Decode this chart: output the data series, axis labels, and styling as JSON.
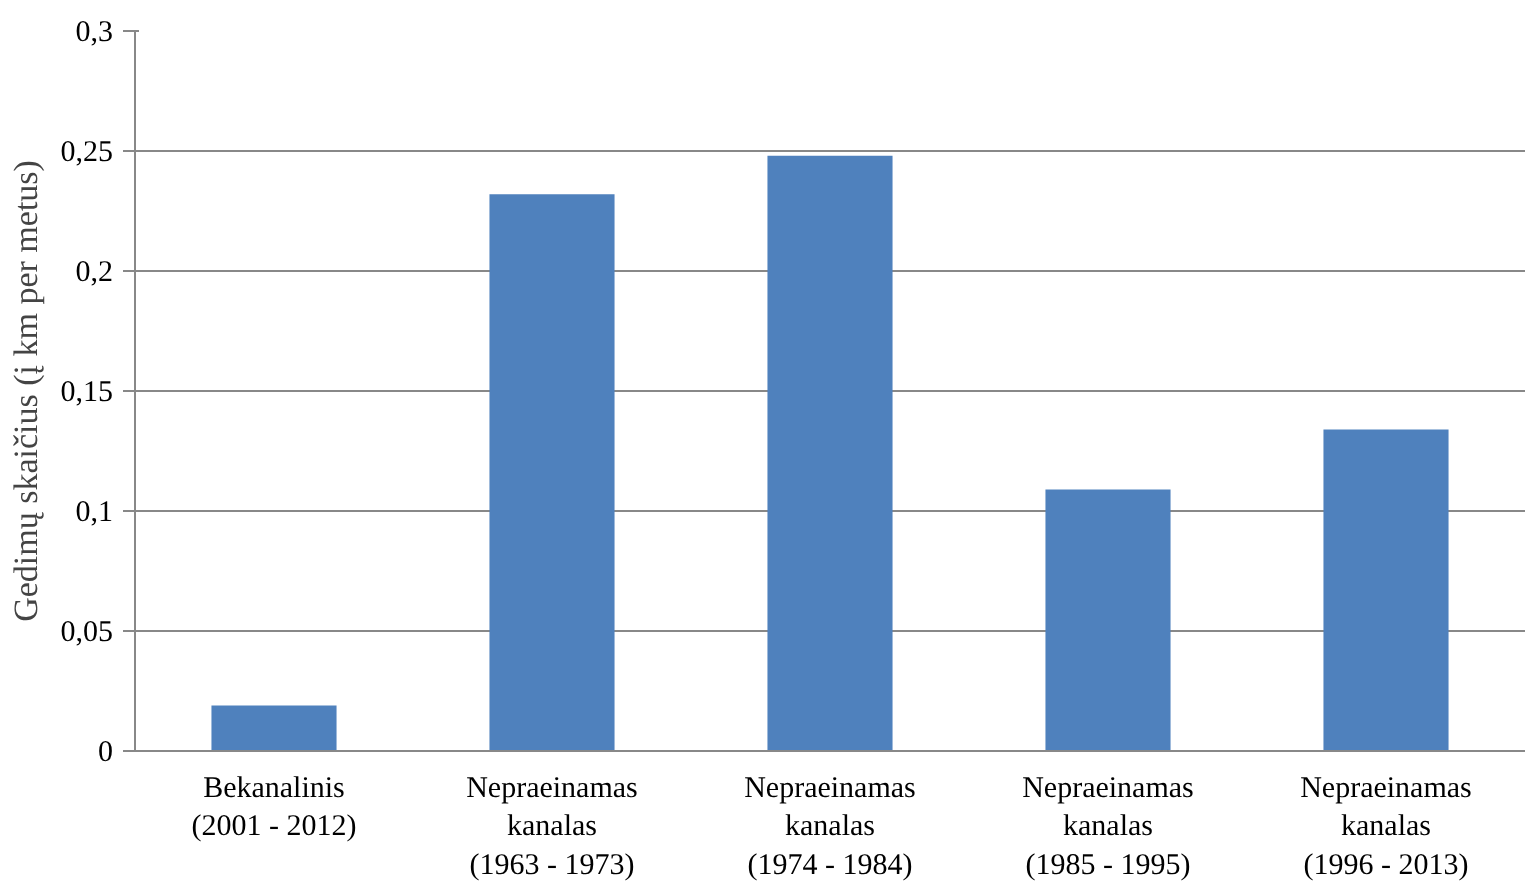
{
  "chart_data": {
    "type": "bar",
    "ylabel": "Gedimų skaičius (į km per metus)",
    "categories": [
      "Bekanalinis\n(2001 - 2012)",
      "Nepraeinamas\nkanalas\n(1963 - 1973)",
      "Nepraeinamas\nkanalas\n(1974 - 1984)",
      "Nepraeinamas\nkanalas\n(1985 - 1995)",
      "Nepraeinamas\nkanalas\n(1996 - 2013)"
    ],
    "values": [
      0.019,
      0.232,
      0.248,
      0.109,
      0.134
    ],
    "color": "#4f81bd",
    "ylim": [
      0,
      0.3
    ],
    "yticks": [
      0,
      {
        "value": 0.05,
        "label": "0,05"
      },
      {
        "value": 0.1,
        "label": "0,1"
      },
      {
        "value": 0.15,
        "label": "0,15"
      },
      {
        "value": 0.2,
        "label": "0,2"
      },
      {
        "value": 0.25,
        "label": "0,25"
      },
      {
        "value": 0.3,
        "label": "0,3"
      }
    ],
    "grid": "y"
  }
}
